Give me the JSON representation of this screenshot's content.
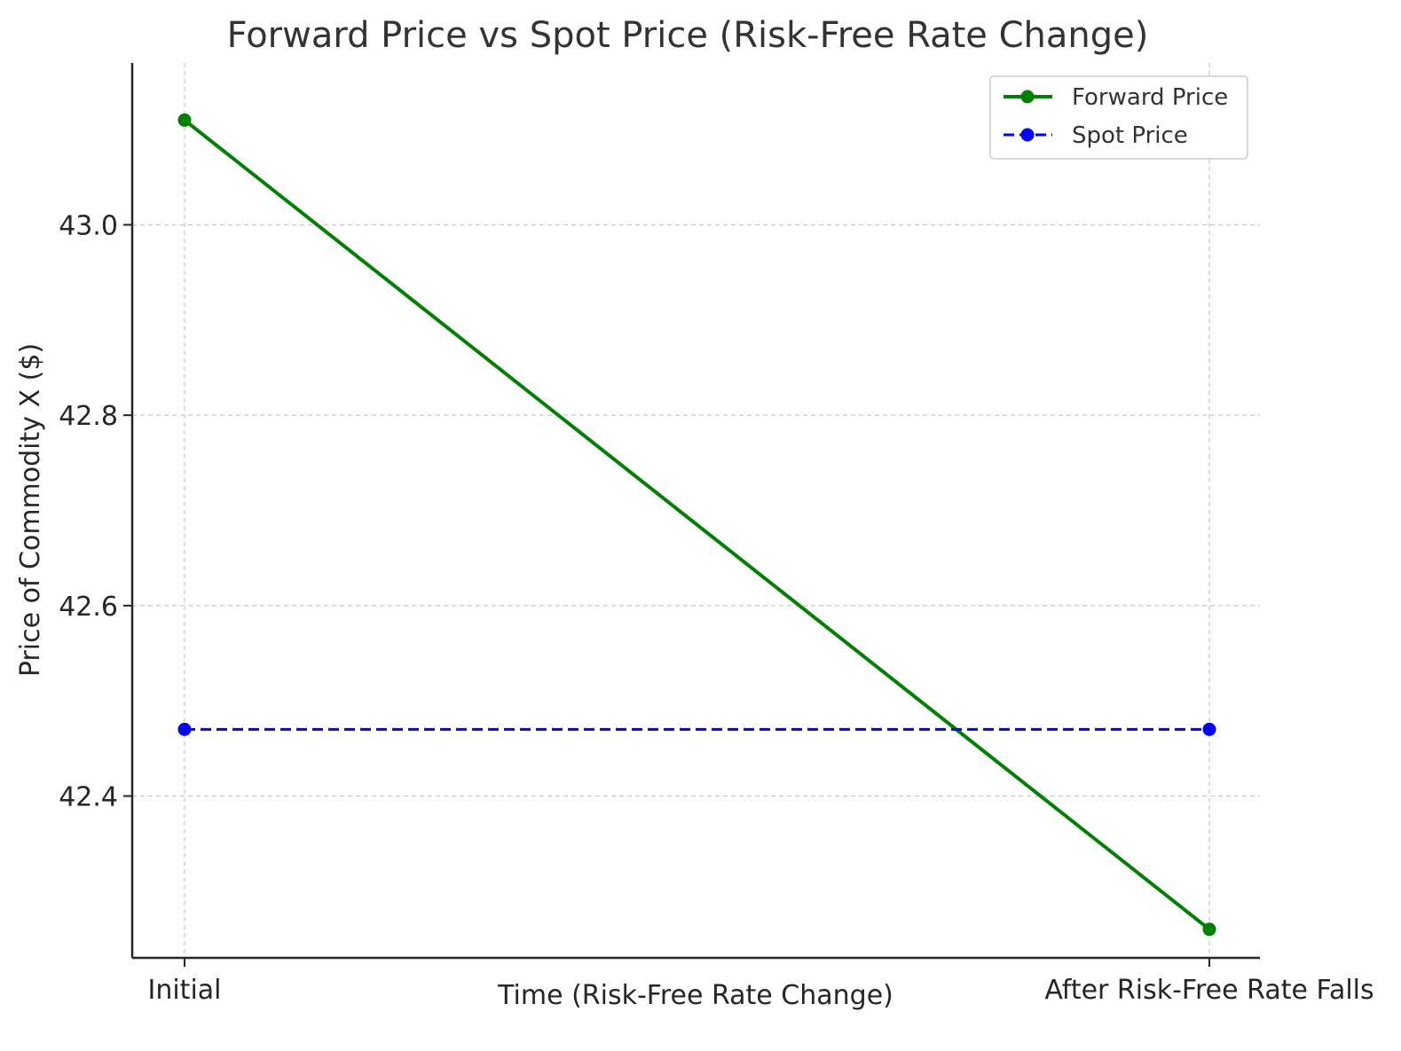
{
  "chart_data": {
    "type": "line",
    "title": "Forward Price vs Spot Price (Risk-Free Rate Change)",
    "xlabel": "Time (Risk-Free Rate Change)",
    "ylabel": "Price of Commodity X ($)",
    "categories": [
      "Initial",
      "After Risk-Free Rate Falls"
    ],
    "yticks": [
      "42.4",
      "42.6",
      "42.8",
      "43.0"
    ],
    "ylim": [
      42.23,
      43.17
    ],
    "grid": true,
    "legend_position": "top-right",
    "series": [
      {
        "name": "Forward Price",
        "values": [
          43.11,
          42.26
        ],
        "color": "#008000",
        "line_style": "solid",
        "marker": "circle"
      },
      {
        "name": "Spot Price",
        "values": [
          42.47,
          42.47
        ],
        "color": "#0000ff",
        "line_style": "dashed",
        "marker": "circle"
      }
    ]
  }
}
